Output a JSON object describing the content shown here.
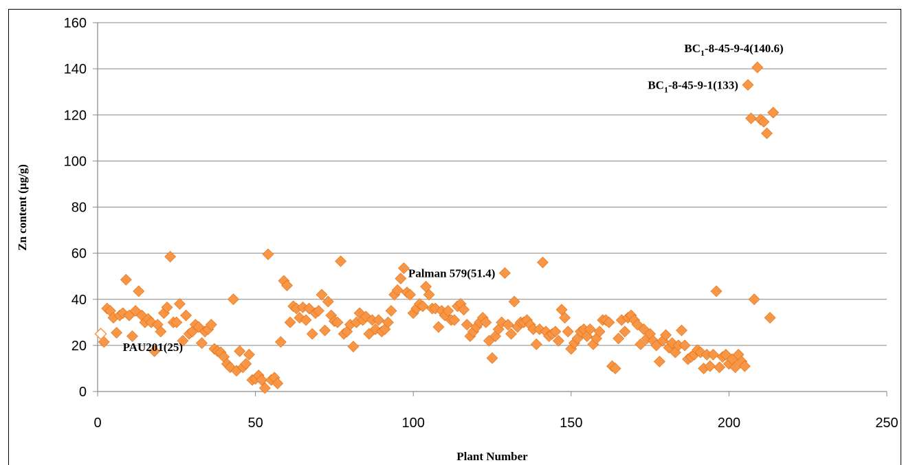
{
  "chart_data": {
    "type": "scatter",
    "xlabel": "Plant Number",
    "ylabel": "Zn content (µg/g)",
    "xlim": [
      0,
      250
    ],
    "ylim": [
      0,
      160
    ],
    "xticks": [
      0,
      50,
      100,
      150,
      200,
      250
    ],
    "yticks": [
      0,
      20,
      40,
      60,
      80,
      100,
      120,
      140,
      160
    ],
    "grid": "horizontal",
    "colors": {
      "marker": "#F79646",
      "marker_stroke": "#E46C0A",
      "gridline": "#868686",
      "axis": "#868686"
    },
    "series": [
      {
        "marker": "diamond",
        "points": [
          [
            2,
            21.5
          ],
          [
            3,
            36
          ],
          [
            4,
            35
          ],
          [
            5,
            32
          ],
          [
            6,
            25.5
          ],
          [
            7,
            33
          ],
          [
            8,
            34
          ],
          [
            9,
            48.5
          ],
          [
            10,
            33
          ],
          [
            11,
            24
          ],
          [
            12,
            35
          ],
          [
            13,
            43.5
          ],
          [
            14,
            33
          ],
          [
            15,
            30
          ],
          [
            16,
            31.5
          ],
          [
            17,
            30
          ],
          [
            18,
            17.5
          ],
          [
            19,
            29
          ],
          [
            20,
            26
          ],
          [
            21,
            34
          ],
          [
            22,
            36.5
          ],
          [
            23,
            58.5
          ],
          [
            24,
            30
          ],
          [
            25,
            30
          ],
          [
            26,
            38
          ],
          [
            27,
            22
          ],
          [
            28,
            33
          ],
          [
            29,
            25
          ],
          [
            30,
            26
          ],
          [
            31,
            29
          ],
          [
            32,
            28
          ],
          [
            33,
            21
          ],
          [
            34,
            26
          ],
          [
            35,
            27
          ],
          [
            36,
            29
          ],
          [
            37,
            18.5
          ],
          [
            38,
            17.5
          ],
          [
            39,
            17
          ],
          [
            40,
            15
          ],
          [
            41,
            12
          ],
          [
            42,
            10.5
          ],
          [
            43,
            40
          ],
          [
            44,
            9
          ],
          [
            45,
            17.5
          ],
          [
            46,
            10.5
          ],
          [
            47,
            12
          ],
          [
            48,
            16
          ],
          [
            49,
            5
          ],
          [
            50,
            5.5
          ],
          [
            51,
            7
          ],
          [
            52,
            5
          ],
          [
            53,
            1.5
          ],
          [
            54,
            59.5
          ],
          [
            55,
            5
          ],
          [
            56,
            6
          ],
          [
            57,
            3.5
          ],
          [
            58,
            21.5
          ],
          [
            59,
            48
          ],
          [
            60,
            46
          ],
          [
            61,
            30
          ],
          [
            62,
            37
          ],
          [
            63,
            36
          ],
          [
            64,
            32
          ],
          [
            65,
            36.5
          ],
          [
            66,
            31
          ],
          [
            67,
            36
          ],
          [
            68,
            25
          ],
          [
            69,
            34
          ],
          [
            70,
            35
          ],
          [
            71,
            42
          ],
          [
            72,
            26.5
          ],
          [
            73,
            39
          ],
          [
            74,
            33
          ],
          [
            75,
            30.5
          ],
          [
            76,
            30
          ],
          [
            77,
            56.5
          ],
          [
            78,
            25
          ],
          [
            79,
            26
          ],
          [
            80,
            29
          ],
          [
            81,
            19.5
          ],
          [
            82,
            30
          ],
          [
            83,
            34
          ],
          [
            84,
            31
          ],
          [
            85,
            32.5
          ],
          [
            86,
            25
          ],
          [
            87,
            31
          ],
          [
            88,
            27
          ],
          [
            89,
            31
          ],
          [
            90,
            26
          ],
          [
            91,
            27
          ],
          [
            92,
            30
          ],
          [
            93,
            35
          ],
          [
            94,
            42
          ],
          [
            95,
            44
          ],
          [
            96,
            49
          ],
          [
            97,
            53.5
          ],
          [
            98,
            43
          ],
          [
            99,
            42
          ],
          [
            100,
            34
          ],
          [
            101,
            36
          ],
          [
            102,
            38
          ],
          [
            103,
            37
          ],
          [
            104,
            45.5
          ],
          [
            105,
            42
          ],
          [
            106,
            36
          ],
          [
            107,
            36
          ],
          [
            108,
            28
          ],
          [
            109,
            35
          ],
          [
            110,
            33
          ],
          [
            111,
            35
          ],
          [
            112,
            31
          ],
          [
            113,
            31
          ],
          [
            114,
            37
          ],
          [
            115,
            38
          ],
          [
            116,
            35.5
          ],
          [
            117,
            29
          ],
          [
            118,
            24
          ],
          [
            119,
            26
          ],
          [
            120,
            28
          ],
          [
            121,
            30
          ],
          [
            122,
            32
          ],
          [
            123,
            30
          ],
          [
            124,
            22
          ],
          [
            125,
            14.5
          ],
          [
            126,
            24
          ],
          [
            127,
            27
          ],
          [
            128,
            30
          ],
          [
            129,
            51.4
          ],
          [
            130,
            29
          ],
          [
            131,
            25
          ],
          [
            132,
            39
          ],
          [
            133,
            28
          ],
          [
            134,
            30
          ],
          [
            135,
            30
          ],
          [
            136,
            31
          ],
          [
            137,
            29
          ],
          [
            138,
            27
          ],
          [
            139,
            20.5
          ],
          [
            140,
            27
          ],
          [
            141,
            56
          ],
          [
            142,
            26
          ],
          [
            143,
            24
          ],
          [
            144,
            25
          ],
          [
            145,
            26
          ],
          [
            146,
            22
          ],
          [
            147,
            35.5
          ],
          [
            148,
            32
          ],
          [
            149,
            26
          ],
          [
            150,
            18.5
          ],
          [
            151,
            21
          ],
          [
            152,
            23
          ],
          [
            153,
            26
          ],
          [
            154,
            27
          ],
          [
            155,
            24
          ],
          [
            156,
            27
          ],
          [
            157,
            20.5
          ],
          [
            158,
            23
          ],
          [
            159,
            26
          ],
          [
            160,
            31
          ],
          [
            161,
            31
          ],
          [
            162,
            30
          ],
          [
            163,
            11
          ],
          [
            164,
            10
          ],
          [
            165,
            23
          ],
          [
            166,
            31
          ],
          [
            167,
            26
          ],
          [
            168,
            32
          ],
          [
            169,
            33
          ],
          [
            170,
            31
          ],
          [
            171,
            29
          ],
          [
            172,
            20.5
          ],
          [
            173,
            27
          ],
          [
            174,
            23
          ],
          [
            175,
            25
          ],
          [
            176,
            22
          ],
          [
            177,
            20
          ],
          [
            178,
            13
          ],
          [
            179,
            22
          ],
          [
            180,
            24.5
          ],
          [
            181,
            19
          ],
          [
            182,
            21
          ],
          [
            183,
            17
          ],
          [
            184,
            20
          ],
          [
            185,
            26.5
          ],
          [
            186,
            20
          ],
          [
            187,
            14
          ],
          [
            188,
            15
          ],
          [
            189,
            16
          ],
          [
            190,
            18
          ],
          [
            191,
            17
          ],
          [
            192,
            10
          ],
          [
            193,
            16
          ],
          [
            194,
            11
          ],
          [
            195,
            16
          ],
          [
            196,
            43.5
          ],
          [
            197,
            10.5
          ],
          [
            198,
            15
          ],
          [
            199,
            16
          ],
          [
            200,
            12
          ],
          [
            201,
            14
          ],
          [
            202,
            10.5
          ],
          [
            203,
            16
          ],
          [
            204,
            13
          ],
          [
            205,
            11
          ],
          [
            206,
            133
          ],
          [
            207,
            118.5
          ],
          [
            208,
            40
          ],
          [
            209,
            140.6
          ],
          [
            210,
            118
          ],
          [
            211,
            117
          ],
          [
            212,
            112
          ],
          [
            213,
            32
          ],
          [
            214,
            121
          ]
        ]
      },
      {
        "marker": "hollow-diamond",
        "points": [
          [
            1,
            25
          ]
        ]
      }
    ],
    "annotations": [
      {
        "label": "PAU201(25)",
        "x": 1,
        "y": 25,
        "anchor": "below-right"
      },
      {
        "label": "Palman 579(51.4)",
        "x": 129,
        "y": 51.4,
        "anchor": "left"
      },
      {
        "prefix": "BC",
        "sub": "1",
        "label": "-8-45-9-1(133)",
        "x": 206,
        "y": 133,
        "anchor": "left"
      },
      {
        "prefix": "BC",
        "sub": "1",
        "label": "-8-45-9-4(140.6)",
        "x": 209,
        "y": 140.6,
        "anchor": "above-left"
      }
    ]
  }
}
